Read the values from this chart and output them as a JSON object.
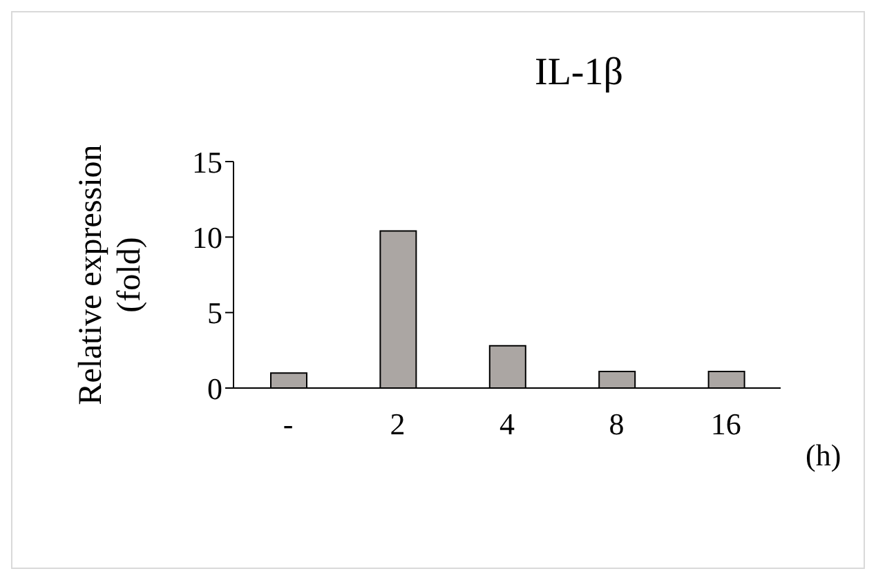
{
  "chart_data": {
    "type": "bar",
    "title": "IL-1β",
    "xlabel": "(h)",
    "ylabel": "Relative expression (fold)",
    "categories": [
      "-",
      "2",
      "4",
      "8",
      "16"
    ],
    "values": [
      1,
      10.4,
      2.8,
      1.1,
      1.1
    ],
    "color": "#aba6a3",
    "ylim": [
      0,
      15
    ],
    "yticks": [
      0,
      5,
      10,
      15
    ],
    "grid": false,
    "legend": false
  }
}
